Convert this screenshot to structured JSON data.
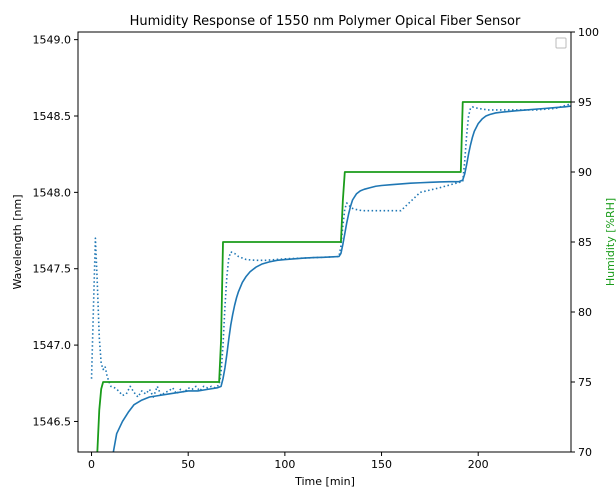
{
  "chart_data": {
    "type": "line",
    "title": "Humidity Response of 1550 nm Polymer Opical Fiber Sensor",
    "xlabel": "Time [min]",
    "ylabel": "Wavelength [nm]",
    "y2label": "Humidity [%RH]",
    "xlim": [
      -7,
      248
    ],
    "ylim": [
      1546.3,
      1549.05
    ],
    "y2lim": [
      70,
      100
    ],
    "x_ticks": [
      0,
      50,
      100,
      150,
      200
    ],
    "y_ticks": [
      1546.5,
      1547.0,
      1547.5,
      1548.0,
      1548.5,
      1549.0
    ],
    "y_tick_labels": [
      "1546.5",
      "1547.0",
      "1547.5",
      "1548.0",
      "1548.5",
      "1549.0"
    ],
    "y2_ticks": [
      70,
      75,
      80,
      85,
      90,
      95,
      100
    ],
    "legend_position": "top-right",
    "grid": false,
    "series": [
      {
        "axis": "left",
        "color": "#1f77b4",
        "style": "solid",
        "x": [
          11,
          13,
          16,
          19,
          22,
          26,
          30,
          35,
          40,
          45,
          50,
          55,
          60,
          65,
          67,
          68,
          69,
          70,
          71,
          72,
          73,
          74,
          75,
          76,
          78,
          80,
          82,
          85,
          88,
          92,
          96,
          100,
          105,
          110,
          115,
          120,
          125,
          128,
          129,
          130,
          131,
          132,
          133,
          134,
          135,
          137,
          139,
          141,
          144,
          147,
          150,
          155,
          160,
          165,
          170,
          175,
          180,
          185,
          190,
          192,
          193,
          194,
          195,
          196,
          197,
          198,
          200,
          202,
          204,
          206,
          209,
          212,
          216,
          220,
          225,
          230,
          235,
          240,
          245,
          248
        ],
        "y": [
          1546.28,
          1546.42,
          1546.5,
          1546.56,
          1546.61,
          1546.64,
          1546.66,
          1546.67,
          1546.68,
          1546.69,
          1546.7,
          1546.7,
          1546.71,
          1546.72,
          1546.73,
          1546.78,
          1546.85,
          1546.94,
          1547.04,
          1547.13,
          1547.2,
          1547.26,
          1547.31,
          1547.35,
          1547.41,
          1547.45,
          1547.48,
          1547.51,
          1547.53,
          1547.545,
          1547.555,
          1547.56,
          1547.565,
          1547.57,
          1547.573,
          1547.575,
          1547.578,
          1547.58,
          1547.6,
          1547.66,
          1547.73,
          1547.8,
          1547.86,
          1547.91,
          1547.95,
          1547.99,
          1548.01,
          1548.02,
          1548.03,
          1548.04,
          1548.045,
          1548.05,
          1548.055,
          1548.06,
          1548.063,
          1548.066,
          1548.068,
          1548.07,
          1548.07,
          1548.08,
          1548.12,
          1548.18,
          1548.25,
          1548.31,
          1548.36,
          1548.4,
          1548.45,
          1548.48,
          1548.5,
          1548.51,
          1548.52,
          1548.525,
          1548.53,
          1548.535,
          1548.54,
          1548.545,
          1548.55,
          1548.555,
          1548.56,
          1548.565
        ]
      },
      {
        "axis": "left",
        "color": "#1f77b4",
        "style": "dotted",
        "x": [
          0,
          1,
          2,
          3,
          4,
          5,
          6,
          7,
          8,
          9,
          10,
          12,
          14,
          16,
          18,
          20,
          22,
          24,
          26,
          28,
          30,
          32,
          34,
          36,
          38,
          40,
          42,
          44,
          46,
          48,
          50,
          52,
          54,
          56,
          58,
          60,
          62,
          64,
          66,
          67,
          68,
          69,
          70,
          71,
          72,
          74,
          76,
          78,
          80,
          85,
          90,
          95,
          100,
          110,
          120,
          128,
          129,
          130,
          131,
          132,
          133,
          134,
          136,
          138,
          140,
          145,
          150,
          160,
          170,
          180,
          190,
          192,
          193,
          194,
          195,
          196,
          197,
          198,
          200,
          205,
          210,
          220,
          230,
          240,
          248
        ],
        "y": [
          1546.78,
          1547.25,
          1547.7,
          1547.4,
          1547.05,
          1546.88,
          1546.84,
          1546.86,
          1546.8,
          1546.76,
          1546.73,
          1546.72,
          1546.7,
          1546.67,
          1546.68,
          1546.73,
          1546.69,
          1546.66,
          1546.7,
          1546.68,
          1546.71,
          1546.66,
          1546.73,
          1546.67,
          1546.69,
          1546.7,
          1546.72,
          1546.68,
          1546.71,
          1546.69,
          1546.72,
          1546.71,
          1546.73,
          1546.7,
          1546.73,
          1546.72,
          1546.73,
          1546.72,
          1546.74,
          1546.82,
          1547.0,
          1547.25,
          1547.45,
          1547.57,
          1547.61,
          1547.6,
          1547.58,
          1547.57,
          1547.56,
          1547.555,
          1547.555,
          1547.56,
          1547.565,
          1547.57,
          1547.575,
          1547.58,
          1547.65,
          1547.78,
          1547.89,
          1547.93,
          1547.92,
          1547.9,
          1547.89,
          1547.885,
          1547.88,
          1547.88,
          1547.88,
          1547.88,
          1548.0,
          1548.03,
          1548.065,
          1548.07,
          1548.2,
          1548.37,
          1548.5,
          1548.55,
          1548.56,
          1548.555,
          1548.55,
          1548.54,
          1548.54,
          1548.54,
          1548.54,
          1548.55,
          1548.58
        ]
      },
      {
        "axis": "right",
        "color": "#1a9c1a",
        "style": "solid",
        "x": [
          3,
          4,
          5,
          6,
          8,
          20,
          40,
          60,
          66,
          67,
          68,
          70,
          80,
          90,
          100,
          110,
          120,
          128,
          129,
          130,
          131,
          135,
          150,
          170,
          190,
          191,
          192,
          193,
          200,
          220,
          240,
          248
        ],
        "y": [
          70,
          73,
          74.5,
          75,
          75,
          75,
          75,
          75,
          75,
          78,
          85,
          85,
          85,
          85,
          85,
          85,
          85,
          85,
          85,
          88,
          90,
          90,
          90,
          90,
          90,
          90,
          95,
          95,
          95,
          95,
          95,
          95
        ]
      }
    ]
  }
}
